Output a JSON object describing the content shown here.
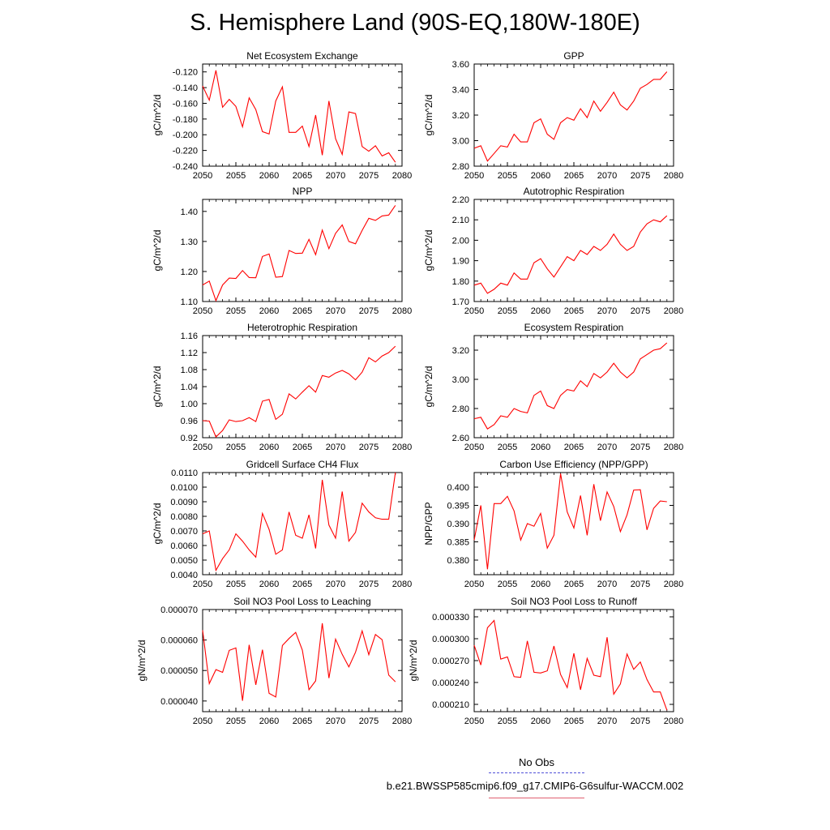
{
  "title": "S. Hemisphere Land (90S-EQ,180W-180E)",
  "legend": {
    "obs_label": "No Obs",
    "case_label": "b.e21.BWSSP585cmip6.f09_g17.CMIP6-G6sulfur-WACCM.002",
    "obs_color": "#5050d8",
    "case_color": "#e06070"
  },
  "chart_data": [
    {
      "type": "line",
      "title": "Net Ecosystem Exchange",
      "ylabel": "gC/m^2/d",
      "xlim": [
        2050,
        2080
      ],
      "x_ticks": [
        "2050",
        "2055",
        "2060",
        "2065",
        "2070",
        "2075",
        "2080"
      ],
      "ylim": [
        -0.24,
        -0.11
      ],
      "y_ticks": [
        "-0.120",
        "-0.140",
        "-0.160",
        "-0.180",
        "-0.200",
        "-0.220",
        "-0.240"
      ],
      "y_tick_values": [
        -0.12,
        -0.14,
        -0.16,
        -0.18,
        -0.2,
        -0.22,
        -0.24
      ],
      "line_color": "#ff0000",
      "x": [
        2050,
        2051,
        2052,
        2053,
        2054,
        2055,
        2056,
        2057,
        2058,
        2059,
        2060,
        2061,
        2062,
        2063,
        2064,
        2065,
        2066,
        2067,
        2068,
        2069,
        2070,
        2071,
        2072,
        2073,
        2074,
        2075,
        2076,
        2077,
        2078,
        2079
      ],
      "values": [
        -0.138,
        -0.156,
        -0.118,
        -0.165,
        -0.155,
        -0.164,
        -0.19,
        -0.153,
        -0.168,
        -0.196,
        -0.199,
        -0.157,
        -0.139,
        -0.197,
        -0.197,
        -0.189,
        -0.215,
        -0.175,
        -0.226,
        -0.157,
        -0.205,
        -0.225,
        -0.171,
        -0.173,
        -0.215,
        -0.221,
        -0.214,
        -0.227,
        -0.223,
        -0.235
      ]
    },
    {
      "type": "line",
      "title": "GPP",
      "ylabel": "gC/m^2/d",
      "xlim": [
        2050,
        2080
      ],
      "x_ticks": [
        "2050",
        "2055",
        "2060",
        "2065",
        "2070",
        "2075",
        "2080"
      ],
      "ylim": [
        2.8,
        3.6
      ],
      "y_ticks": [
        "3.60",
        "3.40",
        "3.20",
        "3.00",
        "2.80"
      ],
      "y_tick_values": [
        3.6,
        3.4,
        3.2,
        3.0,
        2.8
      ],
      "line_color": "#ff0000",
      "x": [
        2050,
        2051,
        2052,
        2053,
        2054,
        2055,
        2056,
        2057,
        2058,
        2059,
        2060,
        2061,
        2062,
        2063,
        2064,
        2065,
        2066,
        2067,
        2068,
        2069,
        2070,
        2071,
        2072,
        2073,
        2074,
        2075,
        2076,
        2077,
        2078,
        2079
      ],
      "values": [
        2.94,
        2.96,
        2.84,
        2.9,
        2.96,
        2.95,
        3.05,
        2.99,
        2.99,
        3.14,
        3.17,
        3.05,
        3.01,
        3.14,
        3.18,
        3.16,
        3.25,
        3.18,
        3.31,
        3.23,
        3.3,
        3.38,
        3.28,
        3.24,
        3.31,
        3.41,
        3.44,
        3.48,
        3.48,
        3.54
      ]
    },
    {
      "type": "line",
      "title": "NPP",
      "ylabel": "gC/m^2/d",
      "xlim": [
        2050,
        2080
      ],
      "x_ticks": [
        "2050",
        "2055",
        "2060",
        "2065",
        "2070",
        "2075",
        "2080"
      ],
      "ylim": [
        1.1,
        1.44
      ],
      "y_ticks": [
        "1.40",
        "1.30",
        "1.20",
        "1.10"
      ],
      "y_tick_values": [
        1.4,
        1.3,
        1.2,
        1.1
      ],
      "line_color": "#ff0000",
      "x": [
        2050,
        2051,
        2052,
        2053,
        2054,
        2055,
        2056,
        2057,
        2058,
        2059,
        2060,
        2061,
        2062,
        2063,
        2064,
        2065,
        2066,
        2067,
        2068,
        2069,
        2070,
        2071,
        2072,
        2073,
        2074,
        2075,
        2076,
        2077,
        2078,
        2079
      ],
      "values": [
        1.155,
        1.168,
        1.103,
        1.155,
        1.178,
        1.177,
        1.203,
        1.18,
        1.179,
        1.25,
        1.258,
        1.181,
        1.183,
        1.27,
        1.26,
        1.261,
        1.307,
        1.256,
        1.338,
        1.276,
        1.327,
        1.355,
        1.3,
        1.292,
        1.337,
        1.377,
        1.37,
        1.385,
        1.388,
        1.42
      ]
    },
    {
      "type": "line",
      "title": "Autotrophic Respiration",
      "ylabel": "gC/m^2/d",
      "xlim": [
        2050,
        2080
      ],
      "x_ticks": [
        "2050",
        "2055",
        "2060",
        "2065",
        "2070",
        "2075",
        "2080"
      ],
      "ylim": [
        1.7,
        2.2
      ],
      "y_ticks": [
        "2.20",
        "2.10",
        "2.00",
        "1.90",
        "1.80",
        "1.70"
      ],
      "y_tick_values": [
        2.2,
        2.1,
        2.0,
        1.9,
        1.8,
        1.7
      ],
      "line_color": "#ff0000",
      "x": [
        2050,
        2051,
        2052,
        2053,
        2054,
        2055,
        2056,
        2057,
        2058,
        2059,
        2060,
        2061,
        2062,
        2063,
        2064,
        2065,
        2066,
        2067,
        2068,
        2069,
        2070,
        2071,
        2072,
        2073,
        2074,
        2075,
        2076,
        2077,
        2078,
        2079
      ],
      "values": [
        1.78,
        1.79,
        1.74,
        1.76,
        1.79,
        1.78,
        1.84,
        1.81,
        1.81,
        1.89,
        1.91,
        1.86,
        1.82,
        1.87,
        1.92,
        1.9,
        1.95,
        1.93,
        1.97,
        1.95,
        1.98,
        2.03,
        1.98,
        1.95,
        1.97,
        2.04,
        2.08,
        2.1,
        2.09,
        2.12
      ]
    },
    {
      "type": "line",
      "title": "Heterotrophic Respiration",
      "ylabel": "gC/m^2/d",
      "xlim": [
        2050,
        2080
      ],
      "x_ticks": [
        "2050",
        "2055",
        "2060",
        "2065",
        "2070",
        "2075",
        "2080"
      ],
      "ylim": [
        0.92,
        1.16
      ],
      "y_ticks": [
        "1.16",
        "1.12",
        "1.08",
        "1.04",
        "1.00",
        "0.96",
        "0.92"
      ],
      "y_tick_values": [
        1.16,
        1.12,
        1.08,
        1.04,
        1.0,
        0.96,
        0.92
      ],
      "line_color": "#ff0000",
      "x": [
        2050,
        2051,
        2052,
        2053,
        2054,
        2055,
        2056,
        2057,
        2058,
        2059,
        2060,
        2061,
        2062,
        2063,
        2064,
        2065,
        2066,
        2067,
        2068,
        2069,
        2070,
        2071,
        2072,
        2073,
        2074,
        2075,
        2076,
        2077,
        2078,
        2079
      ],
      "values": [
        0.96,
        0.959,
        0.922,
        0.937,
        0.962,
        0.958,
        0.96,
        0.967,
        0.958,
        1.006,
        1.01,
        0.963,
        0.975,
        1.023,
        1.011,
        1.027,
        1.042,
        1.027,
        1.066,
        1.062,
        1.072,
        1.078,
        1.07,
        1.056,
        1.074,
        1.108,
        1.098,
        1.112,
        1.12,
        1.135
      ]
    },
    {
      "type": "line",
      "title": "Ecosystem Respiration",
      "ylabel": "gC/m^2/d",
      "xlim": [
        2050,
        2080
      ],
      "x_ticks": [
        "2050",
        "2055",
        "2060",
        "2065",
        "2070",
        "2075",
        "2080"
      ],
      "ylim": [
        2.6,
        3.3
      ],
      "y_ticks": [
        "3.20",
        "3.00",
        "2.80",
        "2.60"
      ],
      "y_tick_values": [
        3.2,
        3.0,
        2.8,
        2.6
      ],
      "line_color": "#ff0000",
      "x": [
        2050,
        2051,
        2052,
        2053,
        2054,
        2055,
        2056,
        2057,
        2058,
        2059,
        2060,
        2061,
        2062,
        2063,
        2064,
        2065,
        2066,
        2067,
        2068,
        2069,
        2070,
        2071,
        2072,
        2073,
        2074,
        2075,
        2076,
        2077,
        2078,
        2079
      ],
      "values": [
        2.73,
        2.74,
        2.66,
        2.69,
        2.75,
        2.74,
        2.8,
        2.78,
        2.77,
        2.89,
        2.92,
        2.82,
        2.8,
        2.89,
        2.93,
        2.92,
        2.99,
        2.95,
        3.04,
        3.01,
        3.05,
        3.11,
        3.05,
        3.01,
        3.05,
        3.14,
        3.17,
        3.2,
        3.21,
        3.25
      ]
    },
    {
      "type": "line",
      "title": "Gridcell Surface CH4 Flux",
      "ylabel": "gC/m^2/d",
      "xlim": [
        2050,
        2080
      ],
      "x_ticks": [
        "2050",
        "2055",
        "2060",
        "2065",
        "2070",
        "2075",
        "2080"
      ],
      "ylim": [
        0.004,
        0.011
      ],
      "y_ticks": [
        "0.0110",
        "0.0100",
        "0.0090",
        "0.0080",
        "0.0070",
        "0.0060",
        "0.0050",
        "0.0040"
      ],
      "y_tick_values": [
        0.011,
        0.01,
        0.009,
        0.008,
        0.007,
        0.006,
        0.005,
        0.004
      ],
      "line_color": "#ff0000",
      "x": [
        2050,
        2051,
        2052,
        2053,
        2054,
        2055,
        2056,
        2057,
        2058,
        2059,
        2060,
        2061,
        2062,
        2063,
        2064,
        2065,
        2066,
        2067,
        2068,
        2069,
        2070,
        2071,
        2072,
        2073,
        2074,
        2075,
        2076,
        2077,
        2078,
        2079
      ],
      "values": [
        0.0068,
        0.007,
        0.0043,
        0.0051,
        0.0057,
        0.0068,
        0.0063,
        0.0057,
        0.0052,
        0.0082,
        0.0071,
        0.0054,
        0.0057,
        0.0083,
        0.0067,
        0.0065,
        0.0081,
        0.0058,
        0.0105,
        0.0074,
        0.0065,
        0.0097,
        0.0063,
        0.0069,
        0.0089,
        0.0083,
        0.0079,
        0.0078,
        0.0078,
        0.011
      ]
    },
    {
      "type": "line",
      "title": "Carbon Use Efficiency (NPP/GPP)",
      "ylabel": "NPP/GPP",
      "xlim": [
        2050,
        2080
      ],
      "x_ticks": [
        "2050",
        "2055",
        "2060",
        "2065",
        "2070",
        "2075",
        "2080"
      ],
      "ylim": [
        0.376,
        0.404
      ],
      "y_ticks": [
        "0.400",
        "0.395",
        "0.390",
        "0.385",
        "0.380"
      ],
      "y_tick_values": [
        0.4,
        0.395,
        0.39,
        0.385,
        0.38
      ],
      "line_color": "#ff0000",
      "x": [
        2050,
        2051,
        2052,
        2053,
        2054,
        2055,
        2056,
        2057,
        2058,
        2059,
        2060,
        2061,
        2062,
        2063,
        2064,
        2065,
        2066,
        2067,
        2068,
        2069,
        2070,
        2071,
        2072,
        2073,
        2074,
        2075,
        2076,
        2077,
        2078,
        2079
      ],
      "values": [
        0.3855,
        0.395,
        0.3775,
        0.3955,
        0.3955,
        0.3975,
        0.3935,
        0.3855,
        0.39,
        0.3893,
        0.3928,
        0.3833,
        0.3868,
        0.4037,
        0.3932,
        0.3888,
        0.3977,
        0.3868,
        0.4008,
        0.3908,
        0.3987,
        0.3947,
        0.3878,
        0.3924,
        0.3992,
        0.3993,
        0.3883,
        0.3942,
        0.3962,
        0.396
      ]
    },
    {
      "type": "line",
      "title": "Soil NO3 Pool Loss to Leaching",
      "ylabel": "gN/m^2/d",
      "xlim": [
        2050,
        2080
      ],
      "x_ticks": [
        "2050",
        "2055",
        "2060",
        "2065",
        "2070",
        "2075",
        "2080"
      ],
      "ylim": [
        3.65e-05,
        7e-05
      ],
      "y_ticks": [
        "0.000070",
        "0.000060",
        "0.000050",
        "0.000040"
      ],
      "y_tick_values": [
        7e-05,
        6e-05,
        5e-05,
        4e-05
      ],
      "line_color": "#ff0000",
      "x": [
        2050,
        2051,
        2052,
        2053,
        2054,
        2055,
        2056,
        2057,
        2058,
        2059,
        2060,
        2061,
        2062,
        2063,
        2064,
        2065,
        2066,
        2067,
        2068,
        2069,
        2070,
        2071,
        2072,
        2073,
        2074,
        2075,
        2076,
        2077,
        2078,
        2079
      ],
      "values": [
        6.32e-05,
        4.57e-05,
        5.03e-05,
        4.94e-05,
        5.66e-05,
        5.74e-05,
        4.01e-05,
        5.84e-05,
        4.53e-05,
        5.68e-05,
        4.25e-05,
        4.13e-05,
        5.82e-05,
        6.05e-05,
        6.25e-05,
        5.67e-05,
        4.37e-05,
        4.66e-05,
        6.55e-05,
        4.75e-05,
        6.03e-05,
        5.53e-05,
        5.12e-05,
        5.6e-05,
        6.3e-05,
        5.52e-05,
        6.18e-05,
        6.01e-05,
        4.85e-05,
        4.63e-05
      ]
    },
    {
      "type": "line",
      "title": "Soil NO3 Pool Loss to Runoff",
      "ylabel": "gN/m^2/d",
      "xlim": [
        2050,
        2080
      ],
      "x_ticks": [
        "2050",
        "2055",
        "2060",
        "2065",
        "2070",
        "2075",
        "2080"
      ],
      "ylim": [
        0.0002,
        0.00034
      ],
      "y_ticks": [
        "0.000330",
        "0.000300",
        "0.000270",
        "0.000240",
        "0.000210"
      ],
      "y_tick_values": [
        0.00033,
        0.0003,
        0.00027,
        0.00024,
        0.00021
      ],
      "line_color": "#ff0000",
      "x": [
        2050,
        2051,
        2052,
        2053,
        2054,
        2055,
        2056,
        2057,
        2058,
        2059,
        2060,
        2061,
        2062,
        2063,
        2064,
        2065,
        2066,
        2067,
        2068,
        2069,
        2070,
        2071,
        2072,
        2073,
        2074,
        2075,
        2076,
        2077,
        2078,
        2079
      ],
      "values": [
        0.000291,
        0.000264,
        0.000315,
        0.000325,
        0.000272,
        0.000275,
        0.000248,
        0.000247,
        0.000297,
        0.000254,
        0.000253,
        0.000256,
        0.00029,
        0.000251,
        0.000233,
        0.00028,
        0.00023,
        0.000273,
        0.00025,
        0.000248,
        0.000302,
        0.000224,
        0.000238,
        0.000279,
        0.000258,
        0.000268,
        0.000244,
        0.000227,
        0.000227,
        0.000202
      ]
    }
  ]
}
